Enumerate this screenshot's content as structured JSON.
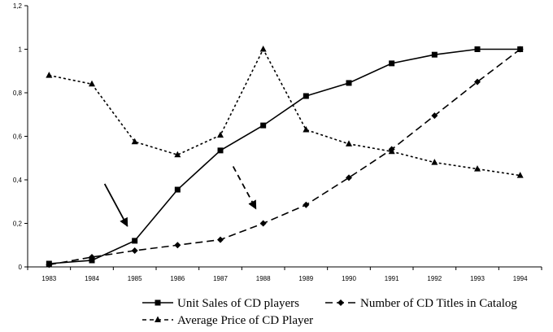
{
  "chart_data": {
    "type": "line",
    "x": [
      "1983",
      "1984",
      "1985",
      "1986",
      "1987",
      "1988",
      "1989",
      "1990",
      "1991",
      "1992",
      "1993",
      "1994"
    ],
    "ylim": [
      0,
      1.2
    ],
    "yticks": [
      "0",
      "0,2",
      "0,4",
      "0,6",
      "0,8",
      "1",
      "1,2"
    ],
    "grid": false,
    "legend_position": "bottom",
    "series": [
      {
        "name": "Unit Sales of CD players",
        "style": "solid",
        "marker": "square",
        "values": [
          0.015,
          0.03,
          0.12,
          0.355,
          0.535,
          0.65,
          0.785,
          0.845,
          0.935,
          0.975,
          1.0,
          1.0
        ]
      },
      {
        "name": "Number of CD Titles in Catalog",
        "style": "longdash",
        "marker": "diamond",
        "values": [
          0.01,
          0.045,
          0.075,
          0.1,
          0.125,
          0.2,
          0.285,
          0.41,
          0.54,
          0.695,
          0.85,
          1.0
        ]
      },
      {
        "name": "Average Price of CD Player",
        "style": "dotted",
        "marker": "triangle",
        "values": [
          0.88,
          0.84,
          0.575,
          0.515,
          0.605,
          1.0,
          0.63,
          0.565,
          0.53,
          0.48,
          0.45,
          0.42
        ]
      }
    ],
    "annotations": [
      {
        "type": "arrow",
        "style": "solid",
        "points_to": {
          "x": "1985",
          "y": 0.12
        }
      },
      {
        "type": "arrow",
        "style": "dashed",
        "points_to": {
          "x": "1988",
          "y": 0.2
        }
      }
    ],
    "colors": {
      "line": "#000000",
      "background": "#ffffff"
    }
  }
}
